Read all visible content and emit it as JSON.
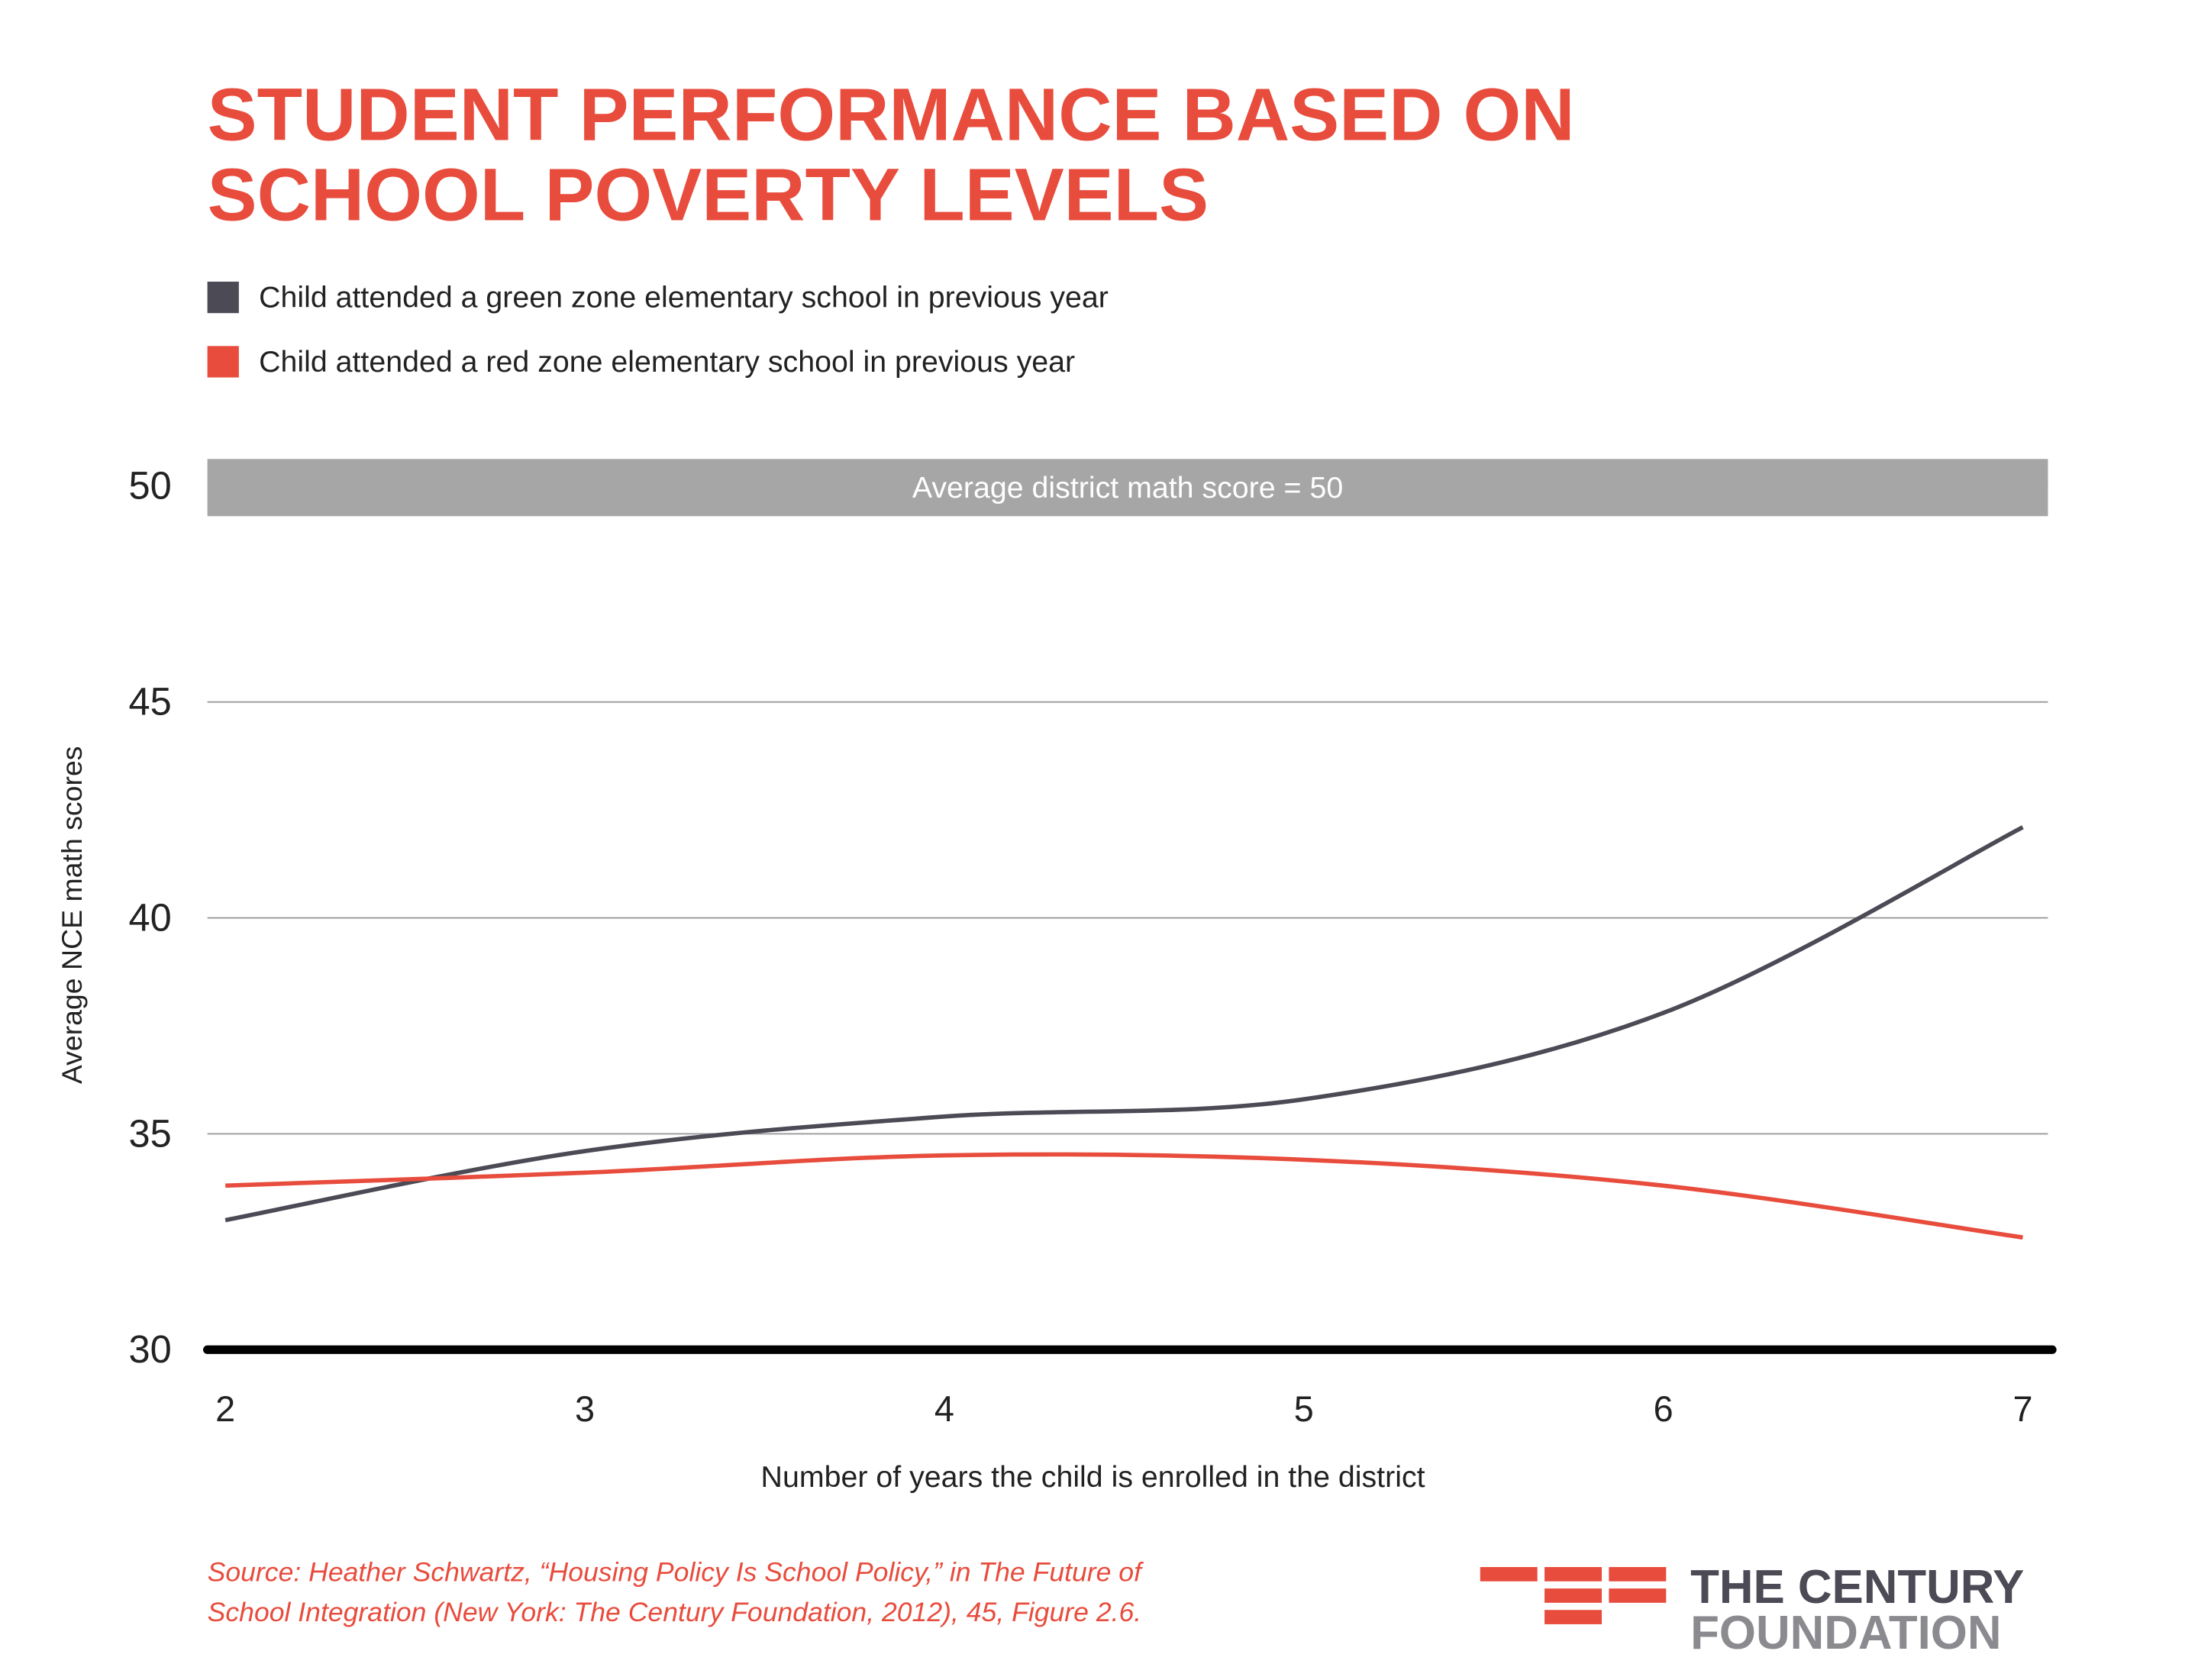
{
  "chart_data": {
    "type": "line",
    "title": [
      "STUDENT PERFORMANCE BASED ON",
      "SCHOOL POVERTY LEVELS"
    ],
    "x_label": "Number of years the child is enrolled in the district",
    "y_label": "Average NCE math scores",
    "x": [
      2,
      3,
      4,
      5,
      6,
      7
    ],
    "series": [
      {
        "name": "Child attended a green zone elementary school in previous year",
        "color": "#4b4a55",
        "values": [
          33.0,
          34.6,
          35.4,
          35.8,
          37.8,
          42.1
        ]
      },
      {
        "name": "Child attended a red zone elementary school in previous year",
        "color": "#e84c3d",
        "values": [
          33.8,
          34.1,
          34.5,
          34.4,
          33.8,
          32.6
        ]
      }
    ],
    "xlim": [
      1.95,
      7.07
    ],
    "xticks": [
      2,
      3,
      4,
      5,
      6,
      7
    ],
    "ylim": [
      30,
      50
    ],
    "yticks": [
      30,
      35,
      40,
      45,
      50
    ],
    "grid": true,
    "reference_band": {
      "value": 50,
      "label": "Average district math score = 50",
      "color": "#a6a6a6"
    },
    "source": [
      "Source: Heather Schwartz, “Housing Policy Is School Policy,” in The Future of",
      "School Integration (New York: The Century Foundation, 2012), 45, Figure 2.6."
    ],
    "logo": [
      "THE CENTURY",
      "FOUNDATION"
    ]
  }
}
